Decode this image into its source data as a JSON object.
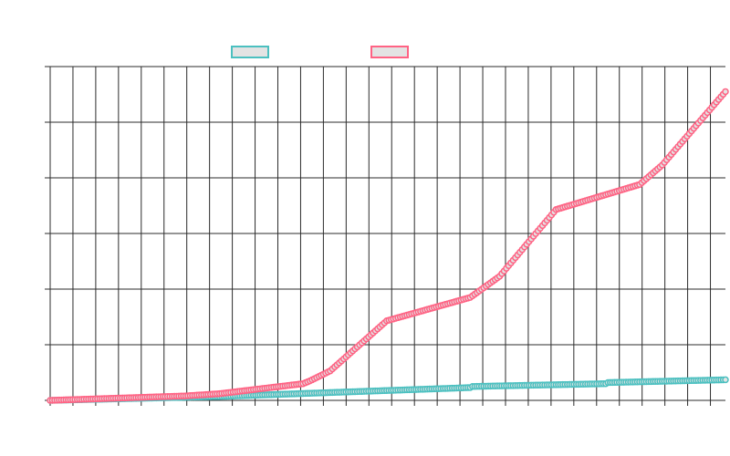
{
  "chart_data": {
    "type": "line",
    "title": "",
    "xlabel": "",
    "ylabel": "",
    "x_points": 300,
    "ylim": [
      0,
      60
    ],
    "yticks": [
      0,
      10,
      20,
      30,
      40,
      50,
      60
    ],
    "x_gridlines": 30,
    "grid": true,
    "legend_position": "top-center",
    "series": [
      {
        "name": "",
        "color": "#4bc0c0",
        "fill": "#e3e3e3",
        "knots": [
          [
            0,
            0
          ],
          [
            75,
            0.7
          ],
          [
            186,
            2.3
          ],
          [
            187,
            2.5
          ],
          [
            246,
            3.0
          ],
          [
            247,
            3.2
          ],
          [
            299,
            3.7
          ]
        ]
      },
      {
        "name": "",
        "color": "#ff6384",
        "fill": "#e3e3e3",
        "knots": [
          [
            0,
            0
          ],
          [
            60,
            0.8
          ],
          [
            75,
            1.2
          ],
          [
            112,
            3.0
          ],
          [
            115,
            3.5
          ],
          [
            124,
            5.3
          ],
          [
            149,
            14.3
          ],
          [
            186,
            18.5
          ],
          [
            199,
            22.3
          ],
          [
            224,
            34.3
          ],
          [
            261,
            38.8
          ],
          [
            271,
            42.3
          ],
          [
            299,
            55.5
          ]
        ]
      }
    ]
  }
}
